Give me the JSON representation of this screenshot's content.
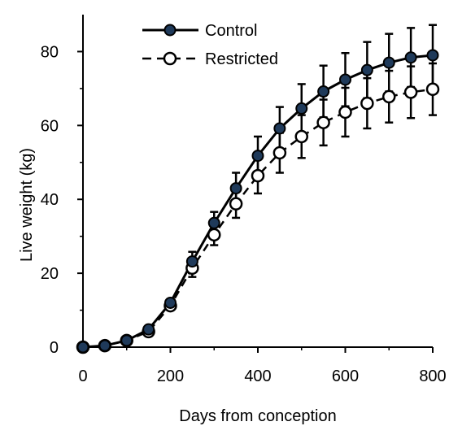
{
  "chart_data": {
    "type": "line",
    "xlabel": "Days from conception",
    "ylabel": "Live weight (kg)",
    "xlim": [
      0,
      800
    ],
    "ylim": [
      0,
      90
    ],
    "xticks": [
      0,
      200,
      400,
      600,
      800
    ],
    "yticks": [
      0,
      20,
      40,
      60,
      80
    ],
    "grid": false,
    "legend_position": "top-left",
    "series": [
      {
        "name": "Control",
        "marker": "filled-circle",
        "line_style": "solid",
        "marker_fill": "#1f3a5a",
        "color": "#000000",
        "x": [
          0,
          50,
          100,
          150,
          200,
          250,
          300,
          350,
          400,
          450,
          500,
          550,
          600,
          650,
          700,
          750,
          800
        ],
        "y": [
          0,
          0.4,
          1.8,
          4.8,
          12.0,
          23.2,
          33.6,
          43.0,
          51.8,
          59.2,
          64.6,
          69.2,
          72.4,
          75.0,
          77.0,
          78.4,
          79.0
        ],
        "error": [
          0,
          0,
          0,
          0.6,
          1.0,
          2.6,
          3.0,
          4.2,
          5.2,
          5.8,
          6.6,
          7.0,
          7.2,
          7.6,
          7.8,
          8.0,
          8.2
        ]
      },
      {
        "name": "Restricted",
        "marker": "open-circle",
        "line_style": "dashed",
        "marker_fill": "#ffffff",
        "color": "#000000",
        "x": [
          0,
          50,
          100,
          150,
          200,
          250,
          300,
          350,
          400,
          450,
          500,
          550,
          600,
          650,
          700,
          750,
          800
        ],
        "y": [
          0,
          0.4,
          1.8,
          4.2,
          11.2,
          21.4,
          30.4,
          38.8,
          46.4,
          52.6,
          57.0,
          60.8,
          63.6,
          66.0,
          67.8,
          69.0,
          69.8
        ],
        "error": [
          0,
          0,
          0,
          0.6,
          1.0,
          2.4,
          2.8,
          3.8,
          4.8,
          5.4,
          5.8,
          6.2,
          6.6,
          6.8,
          7.0,
          7.0,
          7.0
        ]
      }
    ]
  }
}
